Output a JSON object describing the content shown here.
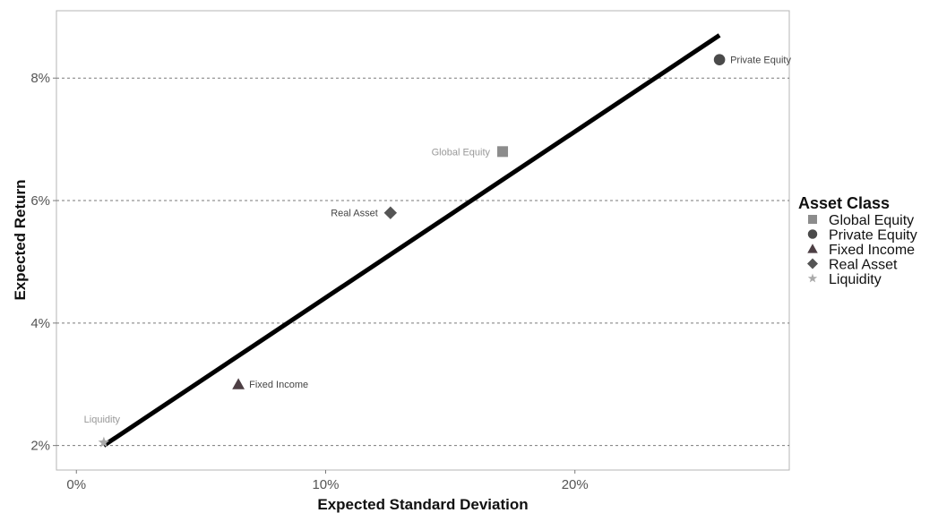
{
  "chart_data": {
    "type": "scatter",
    "title": "",
    "xlabel": "Expected Standard Deviation",
    "ylabel": "Expected Return",
    "xlim": [
      -0.8,
      28.6
    ],
    "ylim": [
      1.6,
      9.1
    ],
    "x_ticks": [
      0,
      10,
      20
    ],
    "x_tick_labels": [
      "0%",
      "10%",
      "20%"
    ],
    "y_ticks": [
      2,
      4,
      6,
      8
    ],
    "y_tick_labels": [
      "2%",
      "4%",
      "6%",
      "8%"
    ],
    "grid": "horizontal dashed",
    "legend_position": "right",
    "legend_title": "Asset Class",
    "series": [
      {
        "name": "Global Equity",
        "shape": "square",
        "color": "#8c8c8c",
        "x": 17.1,
        "y": 6.8,
        "label": "Global Equity"
      },
      {
        "name": "Private Equity",
        "shape": "circle",
        "color": "#4a4a4a",
        "x": 25.8,
        "y": 8.3,
        "label": "Private Equity"
      },
      {
        "name": "Fixed Income",
        "shape": "triangle",
        "color": "#4d3f44",
        "x": 6.5,
        "y": 3.0,
        "label": "Fixed Income"
      },
      {
        "name": "Real Asset",
        "shape": "diamond",
        "color": "#555555",
        "x": 12.6,
        "y": 5.8,
        "label": "Real Asset"
      },
      {
        "name": "Liquidity",
        "shape": "star",
        "color": "#aaaaaa",
        "x": 1.1,
        "y": 2.05,
        "label": "Liquidity"
      }
    ],
    "trend_line": {
      "x": [
        1.1,
        25.8
      ],
      "y": [
        2.0,
        8.7
      ],
      "color": "#000000"
    }
  }
}
